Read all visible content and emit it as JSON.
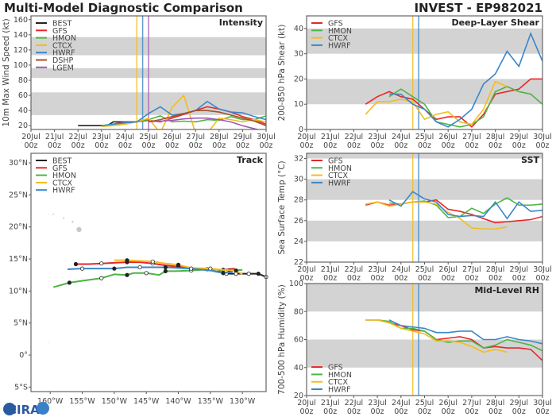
{
  "header": {
    "title": "Multi-Model Diagnostic Comparison",
    "storm": "INVEST - EP982021"
  },
  "logo": {
    "text": "CIRA"
  },
  "colors": {
    "BEST": "#222222",
    "GFS": "#e8262a",
    "HMON": "#4bb543",
    "CTCX": "#f2bd1d",
    "HWRF": "#3a87c8",
    "DSHP": "#a0522d",
    "LGEM": "#a05ab4",
    "band": "#d3d3d3"
  },
  "chart_data": [
    {
      "id": "intensity",
      "type": "line",
      "title": "Intensity",
      "ylabel": "10m Max Wind Speed (kt)",
      "ylim": [
        15,
        165
      ],
      "yticks": [
        20,
        40,
        60,
        80,
        100,
        120,
        140,
        160
      ],
      "xticks": [
        "20Jul",
        "21Jul",
        "22Jul",
        "23Jul",
        "24Jul",
        "25Jul",
        "26Jul",
        "27Jul",
        "28Jul",
        "29Jul",
        "30Jul"
      ],
      "xtick_sub": "00z",
      "xlim": [
        "20Jul 00z",
        "30Jul 00z"
      ],
      "bands": [
        [
          34,
          64
        ],
        [
          83,
          96
        ],
        [
          113,
          137
        ]
      ],
      "legend": "top-left",
      "vlines": [
        {
          "model": "CTCX",
          "x": "24Jul 12z"
        },
        {
          "model": "HWRF",
          "x": "24Jul 18z"
        },
        {
          "model": "LGEM",
          "x": "25Jul 00z"
        }
      ],
      "series": [
        {
          "name": "BEST",
          "x_start": "22Jul 00z",
          "step_hours": 6,
          "values": [
            20,
            20,
            20,
            20,
            20,
            20,
            25,
            25,
            25,
            25,
            25
          ]
        },
        {
          "name": "GFS",
          "x_start": "22Jul 12z",
          "step_hours": 12,
          "values": [
            null,
            20,
            22,
            25,
            25,
            27,
            25,
            30,
            35,
            40,
            45,
            42,
            38,
            32,
            28,
            22
          ]
        },
        {
          "name": "HMON",
          "x_start": "22Jul 12z",
          "step_hours": 12,
          "values": [
            null,
            20,
            22,
            23,
            25,
            28,
            33,
            25,
            26,
            25,
            28,
            27,
            32,
            28,
            28,
            33
          ]
        },
        {
          "name": "CTCX",
          "x_start": "22Jul 12z",
          "step_hours": 12,
          "values": [
            null,
            19,
            20,
            22,
            25,
            30,
            10,
            44,
            60,
            10,
            10,
            30,
            28,
            25,
            28,
            25
          ]
        },
        {
          "name": "HWRF",
          "x_start": "22Jul 12z",
          "step_hours": 12,
          "values": [
            null,
            20,
            22,
            24,
            25,
            36,
            45,
            34,
            36,
            40,
            52,
            42,
            38,
            37,
            32,
            28
          ]
        },
        {
          "name": "DSHP",
          "x_start": "25Jul 00z",
          "step_hours": 12,
          "values": [
            25,
            28,
            32,
            36,
            40,
            40,
            38,
            34,
            30,
            26,
            20
          ]
        },
        {
          "name": "LGEM",
          "x_start": "25Jul 00z",
          "step_hours": 12,
          "values": [
            25,
            26,
            27,
            29,
            30,
            30,
            28,
            25,
            20,
            16,
            12
          ]
        }
      ]
    },
    {
      "id": "shear",
      "type": "line",
      "title": "Deep-Layer Shear",
      "ylabel": "200-850 hPa Shear (kt)",
      "ylim": [
        0,
        45
      ],
      "yticks": [
        0,
        10,
        20,
        30,
        40
      ],
      "xticks": [
        "20Jul",
        "21Jul",
        "22Jul",
        "23Jul",
        "24Jul",
        "25Jul",
        "26Jul",
        "27Jul",
        "28Jul",
        "29Jul",
        "30Jul"
      ],
      "xtick_sub": "00z",
      "xlim": [
        "20Jul 00z",
        "30Jul 00z"
      ],
      "bands": [
        [
          10,
          20
        ],
        [
          30,
          40
        ]
      ],
      "legend": "top-left",
      "vlines": [
        {
          "model": "CTCX",
          "x": "24Jul 12z"
        },
        {
          "model": "HWRF",
          "x": "24Jul 18z"
        }
      ],
      "series": [
        {
          "name": "GFS",
          "x_start": "22Jul 12z",
          "step_hours": 12,
          "values": [
            10,
            13,
            15,
            13,
            12,
            8,
            4,
            5,
            5,
            1,
            6,
            14,
            15,
            16,
            20,
            20
          ]
        },
        {
          "name": "HMON",
          "x_start": "22Jul 12z",
          "step_hours": 12,
          "values": [
            null,
            null,
            13,
            16,
            13,
            10,
            3,
            2,
            1,
            2,
            5,
            15,
            17,
            15,
            14,
            10
          ]
        },
        {
          "name": "CTCX",
          "x_start": "22Jul 12z",
          "step_hours": 12,
          "values": [
            6,
            11,
            11,
            12,
            11,
            4,
            6,
            7,
            3,
            2,
            8,
            19,
            17,
            null,
            null,
            null
          ]
        },
        {
          "name": "HWRF",
          "x_start": "22Jul 12z",
          "step_hours": 12,
          "values": [
            null,
            null,
            14,
            14,
            10,
            8,
            3,
            1,
            4,
            8,
            18,
            22,
            31,
            25,
            38,
            27
          ]
        }
      ]
    },
    {
      "id": "sst",
      "type": "line",
      "title": "SST",
      "ylabel": "Sea Surface Temp (°C)",
      "ylim": [
        22,
        32.5
      ],
      "yticks": [
        22,
        24,
        26,
        28,
        30,
        32
      ],
      "xticks": [
        "20Jul",
        "21Jul",
        "22Jul",
        "23Jul",
        "24Jul",
        "25Jul",
        "26Jul",
        "27Jul",
        "28Jul",
        "29Jul",
        "30Jul"
      ],
      "xtick_sub": "00z",
      "xlim": [
        "20Jul 00z",
        "30Jul 00z"
      ],
      "bands": [
        [
          24,
          26
        ],
        [
          28,
          30
        ],
        [
          32,
          32.5
        ]
      ],
      "legend": "top-left",
      "vlines": [
        {
          "model": "CTCX",
          "x": "24Jul 12z"
        },
        {
          "model": "HWRF",
          "x": "24Jul 18z"
        }
      ],
      "series": [
        {
          "name": "GFS",
          "x_start": "22Jul 12z",
          "step_hours": 12,
          "values": [
            27.5,
            27.8,
            27.5,
            27.6,
            27.8,
            27.8,
            28.0,
            27.1,
            26.9,
            26.6,
            26.2,
            25.8,
            25.9,
            26.0,
            26.1,
            26.4
          ]
        },
        {
          "name": "HMON",
          "x_start": "22Jul 12z",
          "step_hours": 12,
          "values": [
            null,
            null,
            27.7,
            27.6,
            27.8,
            27.9,
            27.5,
            26.3,
            26.4,
            27.2,
            26.7,
            27.6,
            28.2,
            27.5,
            27.5,
            27.6
          ]
        },
        {
          "name": "CTCX",
          "x_start": "22Jul 12z",
          "step_hours": 12,
          "values": [
            27.6,
            27.8,
            27.4,
            27.6,
            27.8,
            27.8,
            27.6,
            26.8,
            26.2,
            25.3,
            25.2,
            25.2,
            25.4,
            null,
            null,
            null
          ]
        },
        {
          "name": "HWRF",
          "x_start": "22Jul 12z",
          "step_hours": 12,
          "values": [
            null,
            null,
            28.0,
            27.4,
            28.8,
            28.1,
            27.8,
            26.6,
            26.4,
            26.5,
            26.4,
            27.8,
            26.2,
            27.8,
            26.9,
            27.0
          ]
        }
      ]
    },
    {
      "id": "rh",
      "type": "line",
      "title": "Mid-Level RH",
      "ylabel": "700-500 hPa Humidity (%)",
      "ylim": [
        20,
        100
      ],
      "yticks": [
        20,
        40,
        60,
        80,
        100
      ],
      "xticks": [
        "20Jul",
        "21Jul",
        "22Jul",
        "23Jul",
        "24Jul",
        "25Jul",
        "26Jul",
        "27Jul",
        "28Jul",
        "29Jul",
        "30Jul"
      ],
      "xtick_sub": "00z",
      "xlim": [
        "20Jul 00z",
        "30Jul 00z"
      ],
      "bands": [
        [
          40,
          60
        ],
        [
          80,
          100
        ]
      ],
      "legend": "bottom-left",
      "vlines": [
        {
          "model": "CTCX",
          "x": "24Jul 12z"
        },
        {
          "model": "HWRF",
          "x": "24Jul 18z"
        }
      ],
      "series": [
        {
          "name": "GFS",
          "x_start": "22Jul 12z",
          "step_hours": 12,
          "values": [
            74,
            74,
            72,
            70,
            67,
            66,
            60,
            61,
            62,
            60,
            54,
            55,
            54,
            54,
            53,
            45
          ]
        },
        {
          "name": "HMON",
          "x_start": "22Jul 12z",
          "step_hours": 12,
          "values": [
            74,
            74,
            73,
            68,
            68,
            66,
            60,
            58,
            59,
            59,
            54,
            56,
            60,
            58,
            56,
            52
          ]
        },
        {
          "name": "CTCX",
          "x_start": "22Jul 12z",
          "step_hours": 12,
          "values": [
            74,
            74,
            72,
            68,
            66,
            64,
            59,
            59,
            58,
            55,
            51,
            53,
            51,
            null,
            null,
            null
          ]
        },
        {
          "name": "HWRF",
          "x_start": "22Jul 12z",
          "step_hours": 12,
          "values": [
            null,
            null,
            74,
            70,
            69,
            68,
            65,
            65,
            66,
            66,
            60,
            60,
            62,
            60,
            59,
            57
          ]
        }
      ]
    },
    {
      "id": "track",
      "type": "line",
      "title": "Track",
      "lon_range": [
        -163,
        -126.3
      ],
      "lat_range": [
        -5.7,
        31.5
      ],
      "lon_ticks": [
        {
          "v": -160,
          "label": "160°W"
        },
        {
          "v": -155,
          "label": "155°W"
        },
        {
          "v": -150,
          "label": "150°W"
        },
        {
          "v": -145,
          "label": "145°W"
        },
        {
          "v": -140,
          "label": "140°W"
        },
        {
          "v": -135,
          "label": "135°W"
        },
        {
          "v": -130,
          "label": "130°W"
        }
      ],
      "lat_ticks": [
        {
          "v": 30,
          "label": "30°N"
        },
        {
          "v": 25,
          "label": "25°N"
        },
        {
          "v": 20,
          "label": "20°N"
        },
        {
          "v": 15,
          "label": "15°N"
        },
        {
          "v": 10,
          "label": "10°N"
        },
        {
          "v": 5,
          "label": "5°N"
        },
        {
          "v": 0,
          "label": "0°"
        },
        {
          "v": -5,
          "label": "5°S"
        }
      ],
      "legend": "top-left",
      "series": [
        {
          "name": "BEST",
          "points": [
            [
              -126.3,
              12.2
            ],
            [
              -127.5,
              12.7
            ],
            [
              -129,
              12.7
            ],
            [
              -131,
              12.7
            ],
            [
              -132.5,
              12.7
            ]
          ]
        },
        {
          "name": "GFS",
          "points": [
            [
              -131.2,
              13.5
            ],
            [
              -133,
              13.3
            ],
            [
              -134,
              13.0
            ],
            [
              -135.5,
              13.4
            ],
            [
              -138,
              13.6
            ],
            [
              -140,
              13.8
            ],
            [
              -142,
              14.0
            ],
            [
              -144,
              14.3
            ],
            [
              -146,
              14.5
            ],
            [
              -148,
              14.5
            ],
            [
              -150,
              14.4
            ],
            [
              -152,
              14.3
            ],
            [
              -154,
              14.2
            ],
            [
              -156,
              14.2
            ]
          ]
        },
        {
          "name": "HMON",
          "points": [
            [
              -130,
              13.3
            ],
            [
              -132,
              13.2
            ],
            [
              -135,
              13.4
            ],
            [
              -138,
              13.2
            ],
            [
              -140.5,
              13.1
            ],
            [
              -142,
              13.1
            ],
            [
              -143,
              12.5
            ],
            [
              -145,
              12.8
            ],
            [
              -147,
              12.8
            ],
            [
              -148,
              12.5
            ],
            [
              -150,
              12.6
            ],
            [
              -152,
              12.0
            ],
            [
              -155,
              11.6
            ],
            [
              -157,
              11.3
            ],
            [
              -159.5,
              10.6
            ]
          ]
        },
        {
          "name": "CTCX",
          "points": [
            [
              -130,
              12.6
            ],
            [
              -131,
              13.2
            ],
            [
              -133,
              13.3
            ],
            [
              -135,
              13.5
            ],
            [
              -138,
              13.6
            ],
            [
              -140,
              14.1
            ],
            [
              -142,
              14.3
            ],
            [
              -144,
              14.6
            ],
            [
              -146,
              14.7
            ],
            [
              -148,
              14.8
            ],
            [
              -150,
              14.8
            ]
          ]
        },
        {
          "name": "HWRF",
          "points": [
            [
              -131.5,
              13.0
            ],
            [
              -133,
              12.8
            ],
            [
              -135,
              13.2
            ],
            [
              -138,
              13.5
            ],
            [
              -140,
              13.6
            ],
            [
              -142,
              13.7
            ],
            [
              -144,
              13.7
            ],
            [
              -146,
              13.7
            ],
            [
              -148,
              13.7
            ],
            [
              -150,
              13.5
            ],
            [
              -152,
              13.5
            ],
            [
              -155,
              13.5
            ],
            [
              -157.3,
              13.4
            ]
          ]
        }
      ]
    }
  ]
}
